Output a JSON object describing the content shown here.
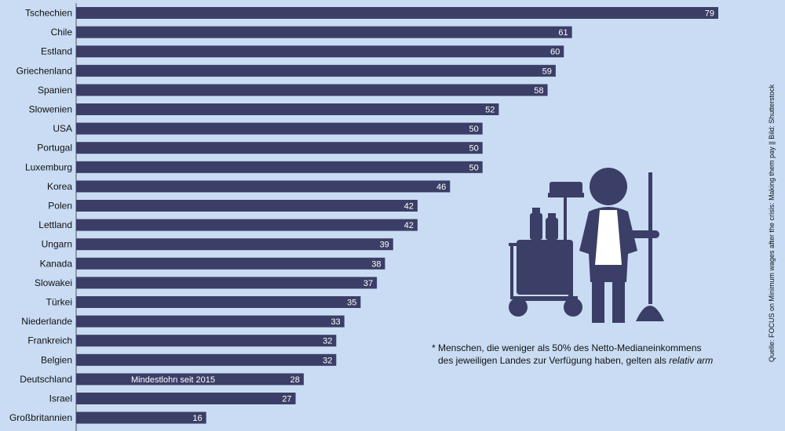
{
  "chart_data": {
    "type": "bar",
    "orientation": "horizontal",
    "categories": [
      "Tschechien",
      "Chile",
      "Estland",
      "Griechenland",
      "Spanien",
      "Slowenien",
      "USA",
      "Portugal",
      "Luxemburg",
      "Korea",
      "Polen",
      "Lettland",
      "Ungarn",
      "Kanada",
      "Slowakei",
      "Türkei",
      "Niederlande",
      "Frankreich",
      "Belgien",
      "Deutschland",
      "Israel",
      "Großbritannien"
    ],
    "values": [
      79,
      61,
      60,
      59,
      58,
      52,
      50,
      50,
      50,
      46,
      42,
      42,
      39,
      38,
      37,
      35,
      33,
      32,
      32,
      28,
      27,
      16
    ],
    "xlim": [
      0,
      79
    ],
    "grid": false,
    "bar_color": "#3b3e66",
    "annotations": [
      {
        "category": "Deutschland",
        "text": "Mindestlohn seit 2015"
      }
    ]
  },
  "footnote": {
    "line1": "* Menschen, die weniger als 50% des Netto-Medianeinkommens",
    "line2": "des jeweiligen Landes zur Verfügung haben, gelten als ",
    "emph": "relativ arm"
  },
  "source": "Quelle: FOCUS on Minimum wages after the crisis: Making them pay || Bild: Shutterstock",
  "colors": {
    "background": "#c9dcf3",
    "bar": "#3b3e66",
    "icon": "#3b3e66"
  },
  "illustration": "cleaning-worker-icon"
}
